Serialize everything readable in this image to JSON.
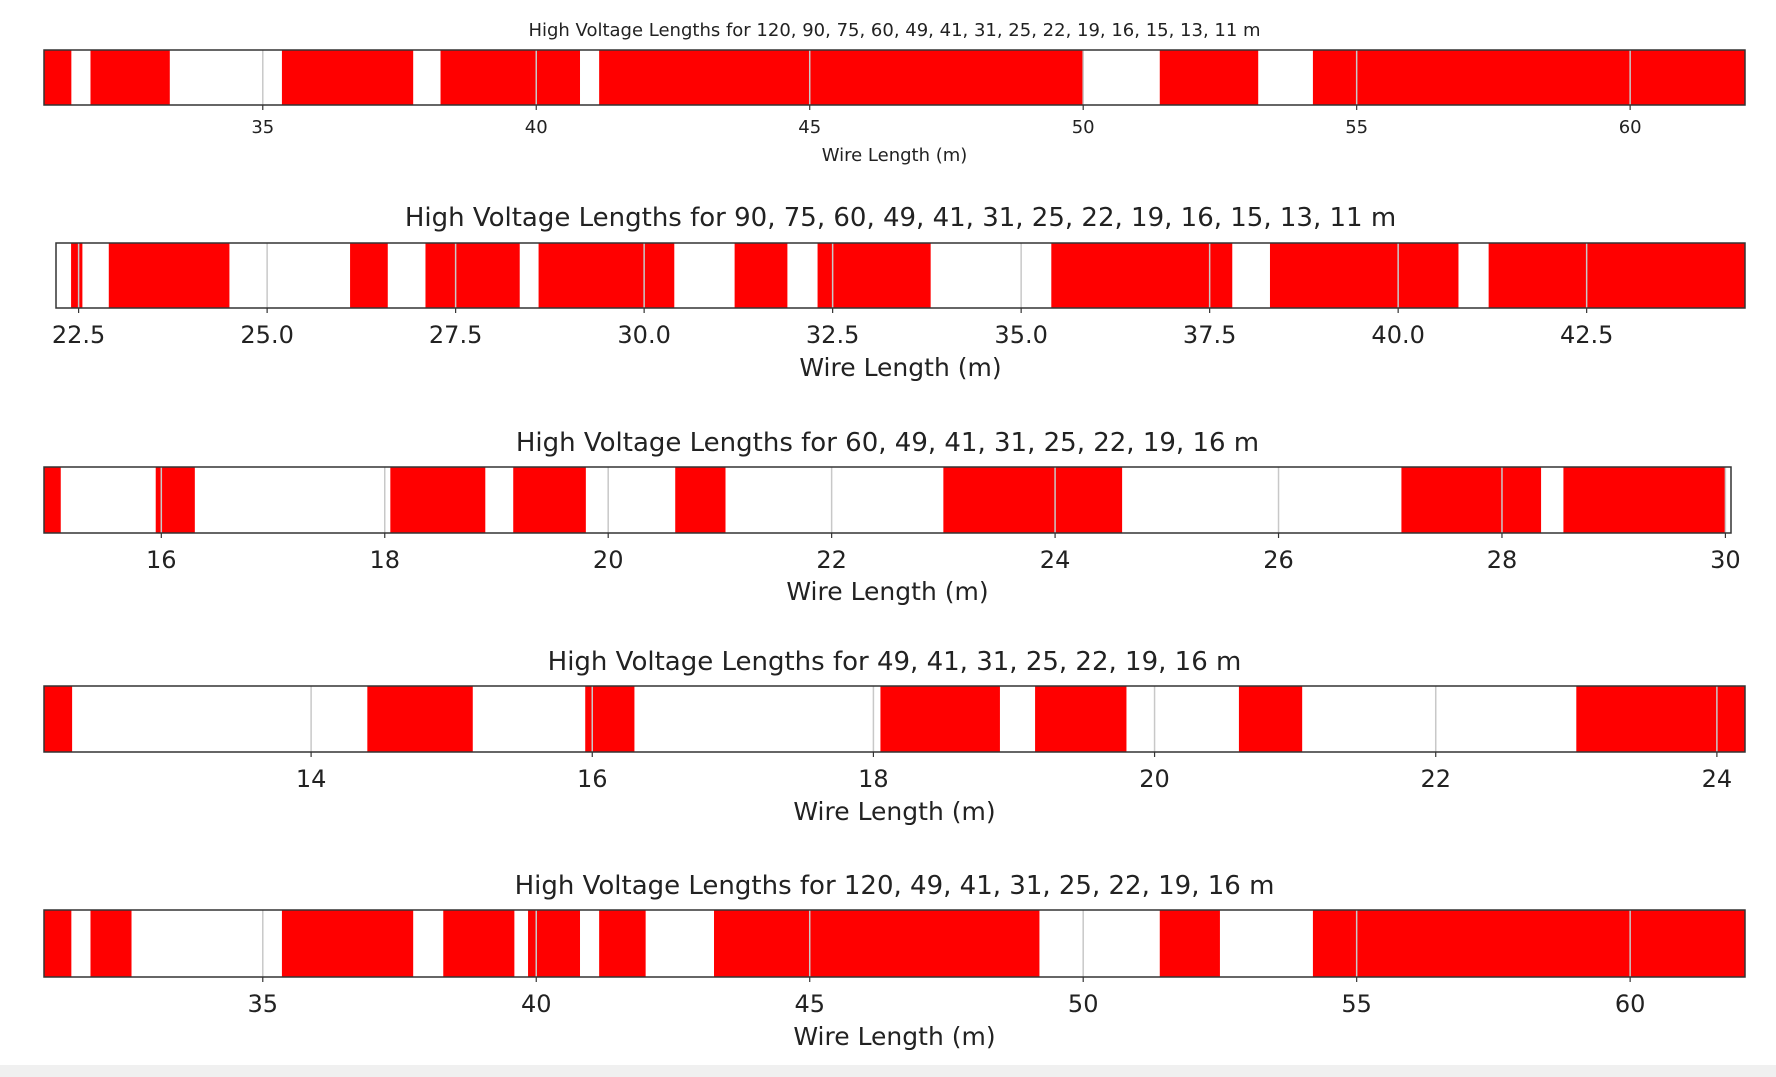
{
  "colors": {
    "high": "#ff0000",
    "background": "#ffffff",
    "frame": "#333333",
    "gridline": "#c8c8c8"
  },
  "chart_data": [
    {
      "type": "bar",
      "orientation": "horizontal-bands",
      "title": "High Voltage Lengths for 120, 90, 75, 60, 49, 41, 31, 25, 22, 19, 16, 15, 13, 11 m",
      "xlabel": "Wire Length (m)",
      "ylabel": "",
      "xlim": [
        31.0,
        62.1
      ],
      "grid": true,
      "ticks": [
        {
          "value": 35,
          "label": "35"
        },
        {
          "value": 40,
          "label": "40"
        },
        {
          "value": 45,
          "label": "45"
        },
        {
          "value": 50,
          "label": "50"
        },
        {
          "value": 55,
          "label": "55"
        },
        {
          "value": 60,
          "label": "60"
        }
      ],
      "bands": [
        [
          31.0,
          31.5
        ],
        [
          31.85,
          33.3
        ],
        [
          35.35,
          37.75
        ],
        [
          38.25,
          40.8
        ],
        [
          41.15,
          50.0
        ],
        [
          51.4,
          53.2
        ],
        [
          54.2,
          62.1
        ]
      ]
    },
    {
      "type": "bar",
      "orientation": "horizontal-bands",
      "title": "High Voltage Lengths for 90, 75, 60, 49, 41, 31, 25, 22, 19, 16, 15, 13, 11 m",
      "xlabel": "Wire Length (m)",
      "ylabel": "",
      "xlim": [
        22.2,
        44.6
      ],
      "grid": true,
      "ticks": [
        {
          "value": 22.5,
          "label": "22.5"
        },
        {
          "value": 25.0,
          "label": "25.0"
        },
        {
          "value": 27.5,
          "label": "27.5"
        },
        {
          "value": 30.0,
          "label": "30.0"
        },
        {
          "value": 32.5,
          "label": "32.5"
        },
        {
          "value": 35.0,
          "label": "35.0"
        },
        {
          "value": 37.5,
          "label": "37.5"
        },
        {
          "value": 40.0,
          "label": "40.0"
        },
        {
          "value": 42.5,
          "label": "42.5"
        }
      ],
      "bands": [
        [
          22.4,
          22.55
        ],
        [
          22.9,
          24.5
        ],
        [
          26.1,
          26.6
        ],
        [
          27.1,
          28.35
        ],
        [
          28.6,
          30.4
        ],
        [
          31.2,
          31.9
        ],
        [
          32.3,
          33.8
        ],
        [
          35.4,
          37.8
        ],
        [
          38.3,
          40.8
        ],
        [
          41.2,
          44.6
        ]
      ]
    },
    {
      "type": "bar",
      "orientation": "horizontal-bands",
      "title": "High Voltage Lengths for 60, 49, 41, 31, 25, 22, 19, 16 m",
      "xlabel": "Wire Length (m)",
      "ylabel": "",
      "xlim": [
        14.95,
        30.05
      ],
      "grid": true,
      "ticks": [
        {
          "value": 16,
          "label": "16"
        },
        {
          "value": 18,
          "label": "18"
        },
        {
          "value": 20,
          "label": "20"
        },
        {
          "value": 22,
          "label": "22"
        },
        {
          "value": 24,
          "label": "24"
        },
        {
          "value": 26,
          "label": "26"
        },
        {
          "value": 28,
          "label": "28"
        },
        {
          "value": 30,
          "label": "30"
        }
      ],
      "bands": [
        [
          14.95,
          15.1
        ],
        [
          15.95,
          16.3
        ],
        [
          18.05,
          18.9
        ],
        [
          19.15,
          19.8
        ],
        [
          20.6,
          21.05
        ],
        [
          23.0,
          24.6
        ],
        [
          27.1,
          28.35
        ],
        [
          28.55,
          30.0
        ]
      ]
    },
    {
      "type": "bar",
      "orientation": "horizontal-bands",
      "title": "High Voltage Lengths for 49, 41, 31, 25, 22, 19, 16 m",
      "xlabel": "Wire Length (m)",
      "ylabel": "",
      "xlim": [
        12.1,
        24.2
      ],
      "grid": true,
      "ticks": [
        {
          "value": 14,
          "label": "14"
        },
        {
          "value": 16,
          "label": "16"
        },
        {
          "value": 18,
          "label": "18"
        },
        {
          "value": 20,
          "label": "20"
        },
        {
          "value": 22,
          "label": "22"
        },
        {
          "value": 24,
          "label": "24"
        }
      ],
      "bands": [
        [
          12.1,
          12.3
        ],
        [
          14.4,
          15.15
        ],
        [
          15.95,
          16.3
        ],
        [
          18.05,
          18.9
        ],
        [
          19.15,
          19.8
        ],
        [
          20.6,
          21.05
        ],
        [
          23.0,
          24.2
        ]
      ]
    },
    {
      "type": "bar",
      "orientation": "horizontal-bands",
      "title": "High Voltage Lengths for 120, 49, 41, 31, 25, 22, 19, 16 m",
      "xlabel": "Wire Length (m)",
      "ylabel": "",
      "xlim": [
        31.0,
        62.1
      ],
      "grid": true,
      "ticks": [
        {
          "value": 35,
          "label": "35"
        },
        {
          "value": 40,
          "label": "40"
        },
        {
          "value": 45,
          "label": "45"
        },
        {
          "value": 50,
          "label": "50"
        },
        {
          "value": 55,
          "label": "55"
        },
        {
          "value": 60,
          "label": "60"
        }
      ],
      "bands": [
        [
          31.0,
          31.5
        ],
        [
          31.85,
          32.6
        ],
        [
          35.35,
          37.75
        ],
        [
          38.3,
          39.6
        ],
        [
          39.85,
          40.8
        ],
        [
          41.15,
          42.0
        ],
        [
          43.25,
          49.2
        ],
        [
          51.4,
          52.5
        ],
        [
          54.2,
          62.1
        ]
      ]
    }
  ]
}
